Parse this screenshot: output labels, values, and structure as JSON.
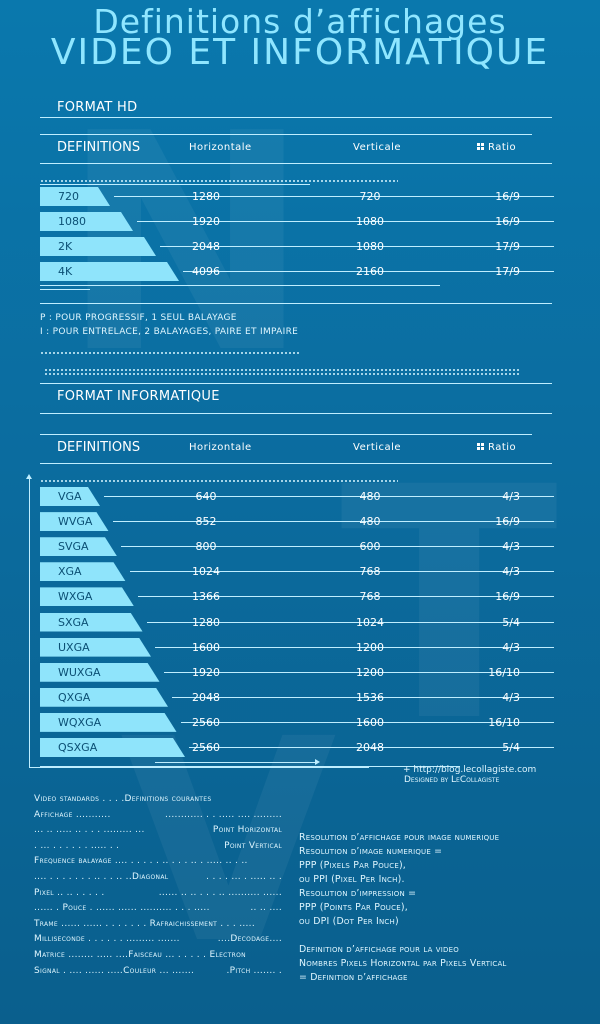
{
  "title": {
    "line1": "Definitions d’affichages",
    "line2": "VIDEO ET INFORMATIQUE"
  },
  "hd": {
    "section_title": "FORMAT HD",
    "headers": {
      "definitions": "DEFINITIONS",
      "horizontal": "Horizontale",
      "vertical": "Verticale",
      "ratio": "Ratio"
    },
    "rows": [
      {
        "name": "720",
        "h": "1280",
        "v": "720",
        "ratio": "16/9"
      },
      {
        "name": "1080",
        "h": "1920",
        "v": "1080",
        "ratio": "16/9"
      },
      {
        "name": "2K",
        "h": "2048",
        "v": "1080",
        "ratio": "17/9"
      },
      {
        "name": "4K",
        "h": "4096",
        "v": "2160",
        "ratio": "17/9"
      }
    ],
    "notes": [
      "P : POUR PROGRESSIF, 1 SEUL BALAYAGE",
      "I : POUR ENTRELACE, 2  BALAYAGES, PAIRE ET IMPAIRE"
    ]
  },
  "it": {
    "section_title": "FORMAT INFORMATIQUE",
    "headers": {
      "definitions": "DEFINITIONS",
      "horizontal": "Horizontale",
      "vertical": "Verticale",
      "ratio": "Ratio"
    },
    "rows": [
      {
        "name": "VGA",
        "h": "640",
        "v": "480",
        "ratio": "4/3"
      },
      {
        "name": "WVGA",
        "h": "852",
        "v": "480",
        "ratio": "16/9"
      },
      {
        "name": "SVGA",
        "h": "800",
        "v": "600",
        "ratio": "4/3"
      },
      {
        "name": "XGA",
        "h": "1024",
        "v": "768",
        "ratio": "4/3"
      },
      {
        "name": "WXGA",
        "h": "1366",
        "v": "768",
        "ratio": "16/9"
      },
      {
        "name": "SXGA",
        "h": "1280",
        "v": "1024",
        "ratio": "5/4"
      },
      {
        "name": "UXGA",
        "h": "1600",
        "v": "1200",
        "ratio": "4/3"
      },
      {
        "name": "WUXGA",
        "h": "1920",
        "v": "1200",
        "ratio": "16/10"
      },
      {
        "name": "QXGA",
        "h": "2048",
        "v": "1536",
        "ratio": "4/3"
      },
      {
        "name": "WQXGA",
        "h": "2560",
        "v": "1600",
        "ratio": "16/10"
      },
      {
        "name": "QSXGA",
        "h": "2560",
        "v": "2048",
        "ratio": "5/4"
      }
    ]
  },
  "credits": {
    "url": "+ http://blog.lecollagiste.com",
    "designed_by": "Designed by LeCollagiste"
  },
  "glossary": {
    "lines": [
      [
        "Video standards . . . .Definitions courantes"
      ],
      [
        "Affichage  ...........",
        "............  . . .....  ....  ........."
      ],
      [
        "... .. ..... .. . . . ......... ...",
        "Point Horizontal"
      ],
      [
        ".    ...   . . . . . . ..... . .",
        "Point Vertical"
      ],
      [
        "Frequence balayage  .... . . . . . .. . . . .. . ..... .. . .."
      ],
      [
        ".... .   .  . . . . . .. . . .. ..Diagonal",
        ". . . . ... . ..... .. ."
      ],
      [
        "Pixel   ..   ..    . . . . .",
        "......   .. .. . . . .. .......... ......"
      ],
      [
        "......     . Pouce . ...... ...... .......... . . . .....",
        ".. .. ...."
      ],
      [
        "Trame ...... ...... . . . . . . . Rafraichissement  . . . ....."
      ],
      [
        "Milliseconde . . . . . . ......... .......",
        "....Decodage...."
      ],
      [
        "Matrice ........ ..... ....Faisceau ...   . . . . . Electron"
      ],
      [
        "Signal . .... ...... .....Couleur ... .......",
        ".Pitch ....... ."
      ]
    ]
  },
  "info": {
    "lines": [
      "Resolution d’affichage  pour image numerique",
      "Resolution d’image numerique =",
      "PPP (Pixels Par Pouce),",
      "ou PPI (Pixel Per Inch).",
      "Resolution d’impression =",
      "PPP (Points Par Pouce),",
      "ou DPI (Dot Per Inch)",
      "",
      "Definition d’affichage pour la video",
      "Nombres Pixels Horizontal par Pixels Vertical",
      "= Definition d’affichage"
    ]
  }
}
